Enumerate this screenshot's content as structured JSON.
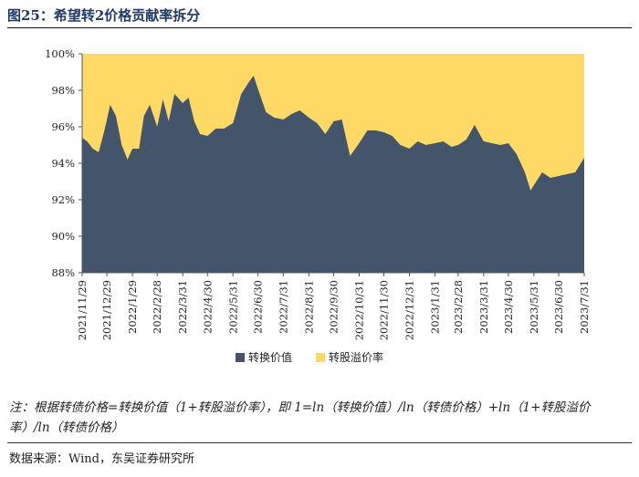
{
  "figure_title": "图25：希望转2价格贡献率拆分",
  "note": "注：根据转债价格=转换价值（1+转股溢价率），即 1=ln（转换价值）/ln（转债价格）+ln（1+转股溢价率）/ln（转债价格）",
  "source": "数据来源：Wind，东吴证券研究所",
  "chart_data": {
    "type": "area",
    "stacked": true,
    "ylim": [
      0.88,
      1.0
    ],
    "y_ticks": [
      "88%",
      "90%",
      "92%",
      "94%",
      "96%",
      "98%",
      "100%"
    ],
    "x_ticks": [
      "2021/11/29",
      "2021/12/29",
      "2022/1/29",
      "2022/2/28",
      "2022/3/31",
      "2022/4/30",
      "2022/5/31",
      "2022/6/30",
      "2022/7/31",
      "2022/8/31",
      "2022/9/30",
      "2022/10/31",
      "2022/11/30",
      "2022/12/31",
      "2023/1/31",
      "2023/2/28",
      "2023/3/31",
      "2023/4/30",
      "2023/5/31",
      "2023/6/30",
      "2023/7/31"
    ],
    "legend_position": "bottom",
    "series": [
      {
        "name": "转换价值",
        "color": "#44546a",
        "points": [
          [
            "2021/11/29",
            0.954
          ],
          [
            "2021/12/5",
            0.952
          ],
          [
            "2021/12/12",
            0.948
          ],
          [
            "2021/12/19",
            0.946
          ],
          [
            "2021/12/26",
            0.958
          ],
          [
            "2022/1/2",
            0.972
          ],
          [
            "2022/1/9",
            0.966
          ],
          [
            "2022/1/16",
            0.95
          ],
          [
            "2022/1/23",
            0.942
          ],
          [
            "2022/1/29",
            0.948
          ],
          [
            "2022/2/6",
            0.948
          ],
          [
            "2022/2/12",
            0.966
          ],
          [
            "2022/2/19",
            0.972
          ],
          [
            "2022/2/28",
            0.96
          ],
          [
            "2022/3/7",
            0.975
          ],
          [
            "2022/3/14",
            0.963
          ],
          [
            "2022/3/21",
            0.978
          ],
          [
            "2022/3/31",
            0.973
          ],
          [
            "2022/4/7",
            0.976
          ],
          [
            "2022/4/14",
            0.963
          ],
          [
            "2022/4/21",
            0.956
          ],
          [
            "2022/4/30",
            0.955
          ],
          [
            "2022/5/10",
            0.959
          ],
          [
            "2022/5/20",
            0.959
          ],
          [
            "2022/5/31",
            0.962
          ],
          [
            "2022/6/10",
            0.978
          ],
          [
            "2022/6/20",
            0.985
          ],
          [
            "2022/6/25",
            0.988
          ],
          [
            "2022/6/30",
            0.981
          ],
          [
            "2022/7/10",
            0.968
          ],
          [
            "2022/7/20",
            0.965
          ],
          [
            "2022/7/31",
            0.964
          ],
          [
            "2022/8/10",
            0.967
          ],
          [
            "2022/8/20",
            0.969
          ],
          [
            "2022/8/31",
            0.965
          ],
          [
            "2022/9/10",
            0.962
          ],
          [
            "2022/9/20",
            0.956
          ],
          [
            "2022/9/30",
            0.963
          ],
          [
            "2022/10/10",
            0.964
          ],
          [
            "2022/10/20",
            0.944
          ],
          [
            "2022/10/31",
            0.951
          ],
          [
            "2022/11/10",
            0.958
          ],
          [
            "2022/11/20",
            0.958
          ],
          [
            "2022/11/30",
            0.957
          ],
          [
            "2022/12/10",
            0.955
          ],
          [
            "2022/12/20",
            0.95
          ],
          [
            "2022/12/31",
            0.948
          ],
          [
            "2023/1/10",
            0.952
          ],
          [
            "2023/1/20",
            0.95
          ],
          [
            "2023/1/31",
            0.951
          ],
          [
            "2023/2/10",
            0.952
          ],
          [
            "2023/2/20",
            0.949
          ],
          [
            "2023/2/28",
            0.95
          ],
          [
            "2023/3/10",
            0.953
          ],
          [
            "2023/3/20",
            0.961
          ],
          [
            "2023/3/31",
            0.952
          ],
          [
            "2023/4/10",
            0.951
          ],
          [
            "2023/4/20",
            0.95
          ],
          [
            "2023/4/30",
            0.951
          ],
          [
            "2023/5/10",
            0.945
          ],
          [
            "2023/5/20",
            0.935
          ],
          [
            "2023/5/27",
            0.925
          ],
          [
            "2023/5/31",
            0.928
          ],
          [
            "2023/6/10",
            0.935
          ],
          [
            "2023/6/20",
            0.932
          ],
          [
            "2023/6/30",
            0.933
          ],
          [
            "2023/7/10",
            0.934
          ],
          [
            "2023/7/20",
            0.935
          ],
          [
            "2023/7/31",
            0.943
          ]
        ]
      },
      {
        "name": "转股溢价率",
        "color": "#ffd966",
        "fills_to": 1.0
      }
    ]
  }
}
